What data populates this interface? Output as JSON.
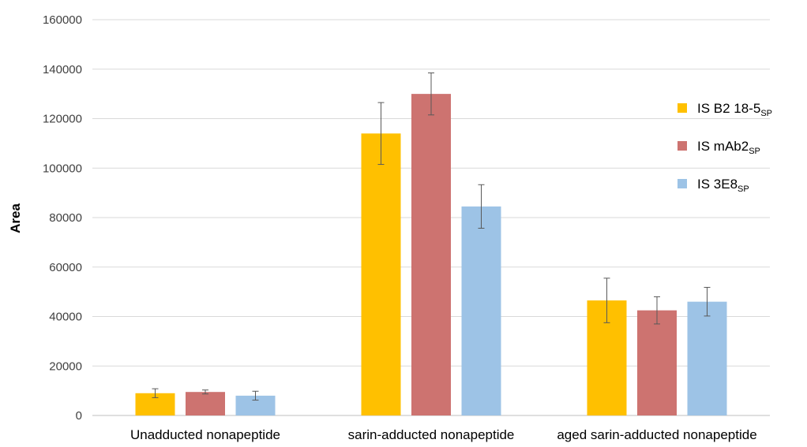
{
  "chart_data": {
    "type": "bar",
    "title": "",
    "xlabel": "",
    "ylabel": "Area",
    "ylim": [
      0,
      160000
    ],
    "yticks": [
      0,
      20000,
      40000,
      60000,
      80000,
      100000,
      120000,
      140000,
      160000
    ],
    "grid": true,
    "legend_position": "right",
    "categories": [
      "Unadducted nonapeptide",
      "sarin-adducted nonapeptide",
      "aged sarin-adducted nonapeptide"
    ],
    "series": [
      {
        "name": "IS B2 18-5",
        "subscript": "SP",
        "color": "#FFC000",
        "values": [
          9000,
          114000,
          46500
        ],
        "errors": [
          1800,
          12500,
          9000
        ]
      },
      {
        "name": "IS mAb2",
        "subscript": "SP",
        "color": "#CD7370",
        "values": [
          9500,
          130000,
          42500
        ],
        "errors": [
          800,
          8500,
          5500
        ]
      },
      {
        "name": "IS 3E8",
        "subscript": "SP",
        "color": "#9DC3E6",
        "values": [
          8000,
          84500,
          46000
        ],
        "errors": [
          1800,
          8800,
          5800
        ]
      }
    ]
  }
}
